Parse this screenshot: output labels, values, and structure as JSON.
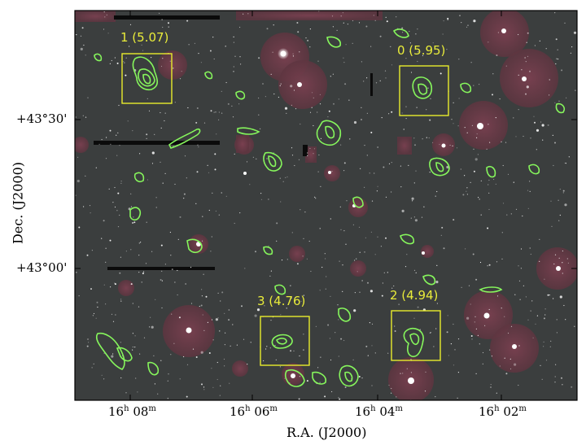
{
  "image": {
    "description_colors": {
      "sky": "#3c3f3f",
      "halo": "#6a3a45",
      "contour": "#7CFF5A",
      "box": "#E8EC2B",
      "axis": "#000000"
    }
  },
  "boxes": [
    {
      "label": "1 (5.07)"
    },
    {
      "label": "0 (5.95)"
    },
    {
      "label": "3 (4.76)"
    },
    {
      "label": "2 (4.94)"
    }
  ],
  "axes": {
    "x_title": "R.A. (J2000)",
    "y_title": "Dec. (J2000)",
    "x_ticks": [
      {
        "h": "16",
        "m": "08"
      },
      {
        "h": "16",
        "m": "06"
      },
      {
        "h": "16",
        "m": "04"
      },
      {
        "h": "16",
        "m": "02"
      }
    ],
    "y_ticks": [
      "+43°30'",
      "+43°00'"
    ],
    "x_h_unit": "h",
    "x_m_unit": "m"
  }
}
